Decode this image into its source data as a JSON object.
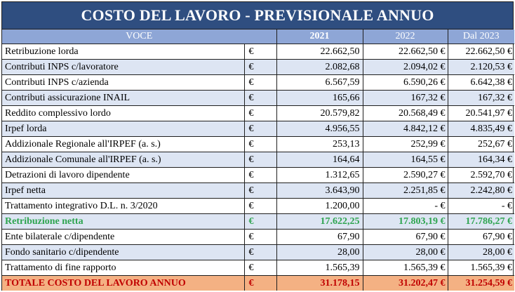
{
  "title": "COSTO DEL LAVORO - PREVISIONALE ANNUO",
  "colors": {
    "header_title_bg": "#2f4e80",
    "header_row_bg": "#8ea6d6",
    "alt_row_bg": "#dde5f3",
    "green_text": "#2ea44f",
    "total_bg": "#f4b183",
    "total_text": "#c00000"
  },
  "columns": {
    "voce": "VOCE",
    "y2021": "2021",
    "y2022": "2022",
    "y2023": "Dal 2023"
  },
  "rows": [
    {
      "label": "Retribuzione lorda",
      "cur": "€",
      "v2021": "22.662,50",
      "v2022": "22.662,50 €",
      "v2023": "22.662,50 €"
    },
    {
      "label": "Contributi INPS c/lavoratore",
      "cur": "€",
      "v2021": "2.082,68",
      "v2022": "2.094,02 €",
      "v2023": "2.120,53 €"
    },
    {
      "label": "Contributi INPS c/azienda",
      "cur": "€",
      "v2021": "6.567,59",
      "v2022": "6.590,26 €",
      "v2023": "6.642,38 €"
    },
    {
      "label": "Contributi assicurazione INAIL",
      "cur": "€",
      "v2021": "165,66",
      "v2022": "167,32 €",
      "v2023": "167,32 €"
    },
    {
      "label": "Reddito complessivo lordo",
      "cur": "€",
      "v2021": "20.579,82",
      "v2022": "20.568,49 €",
      "v2023": "20.541,97 €"
    },
    {
      "label": "Irpef lorda",
      "cur": "€",
      "v2021": "4.956,55",
      "v2022": "4.842,12 €",
      "v2023": "4.835,49 €"
    },
    {
      "label": "Addizionale Regionale all'IRPEF (a. s.)",
      "cur": "€",
      "v2021": "253,13",
      "v2022": "252,99 €",
      "v2023": "252,67 €"
    },
    {
      "label": "Addizionale Comunale all'IRPEF (a. s.)",
      "cur": "€",
      "v2021": "164,64",
      "v2022": "164,55 €",
      "v2023": "164,34 €"
    },
    {
      "label": "Detrazioni di lavoro dipendente",
      "cur": "€",
      "v2021": "1.312,65",
      "v2022": "2.590,27 €",
      "v2023": "2.592,70 €"
    },
    {
      "label": "Irpef netta",
      "cur": "€",
      "v2021": "3.643,90",
      "v2022": "2.251,85 €",
      "v2023": "2.242,80 €"
    },
    {
      "label": "Trattamento integrativo D.L. n. 3/2020",
      "cur": "€",
      "v2021": "1.200,00",
      "v2022": "-    €",
      "v2023": "-    €"
    },
    {
      "label": "Retribuzione netta",
      "cur": "€",
      "v2021": "17.622,25",
      "v2022": "17.803,19 €",
      "v2023": "17.786,27 €"
    },
    {
      "label": "Ente bilaterale c/dipendente",
      "cur": "€",
      "v2021": "67,90",
      "v2022": "67,90 €",
      "v2023": "67,90 €"
    },
    {
      "label": "Fondo sanitario c/dipendente",
      "cur": "€",
      "v2021": "28,00",
      "v2022": "28,00 €",
      "v2023": "28,00 €"
    },
    {
      "label": "Trattamento di fine rapporto",
      "cur": "€",
      "v2021": "1.565,39",
      "v2022": "1.565,39 €",
      "v2023": "1.565,39 €"
    },
    {
      "label": "TOTALE COSTO DEL LAVORO ANNUO",
      "cur": "€",
      "v2021": "31.178,15",
      "v2022": "31.202,47 €",
      "v2023": "31.254,59 €"
    }
  ]
}
